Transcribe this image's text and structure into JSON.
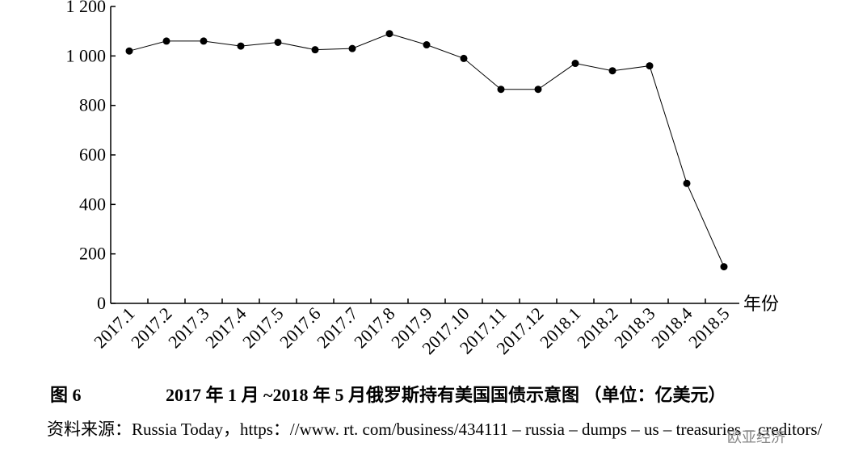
{
  "chart_data": {
    "type": "line",
    "categories": [
      "2017.1",
      "2017.2",
      "2017.3",
      "2017.4",
      "2017.5",
      "2017.6",
      "2017.7",
      "2017.8",
      "2017.9",
      "2017.10",
      "2017.11",
      "2017.12",
      "2018.1",
      "2018.2",
      "2018.3",
      "2018.4",
      "2018.5"
    ],
    "values": [
      1020,
      1060,
      1060,
      1040,
      1055,
      1025,
      1030,
      1090,
      1045,
      990,
      865,
      865,
      970,
      940,
      960,
      485,
      148
    ],
    "color": "#000000",
    "ylim": [
      0,
      1200
    ],
    "yticks": [
      0,
      200,
      400,
      600,
      800,
      {
        "value": 1000,
        "label": "1 000"
      },
      {
        "value": 1200,
        "label": "1 200"
      }
    ],
    "x_label": "年份",
    "figure_number": "图 6",
    "caption": "2017 年 1 月 ~2018 年 5 月俄罗斯持有美国国债示意图 （单位：亿美元）",
    "source": "资料来源：Russia Today，https：//www. rt. com/business/434111 – russia – dumps – us – treasuries – creditors/",
    "watermark": "欧亚经济"
  }
}
